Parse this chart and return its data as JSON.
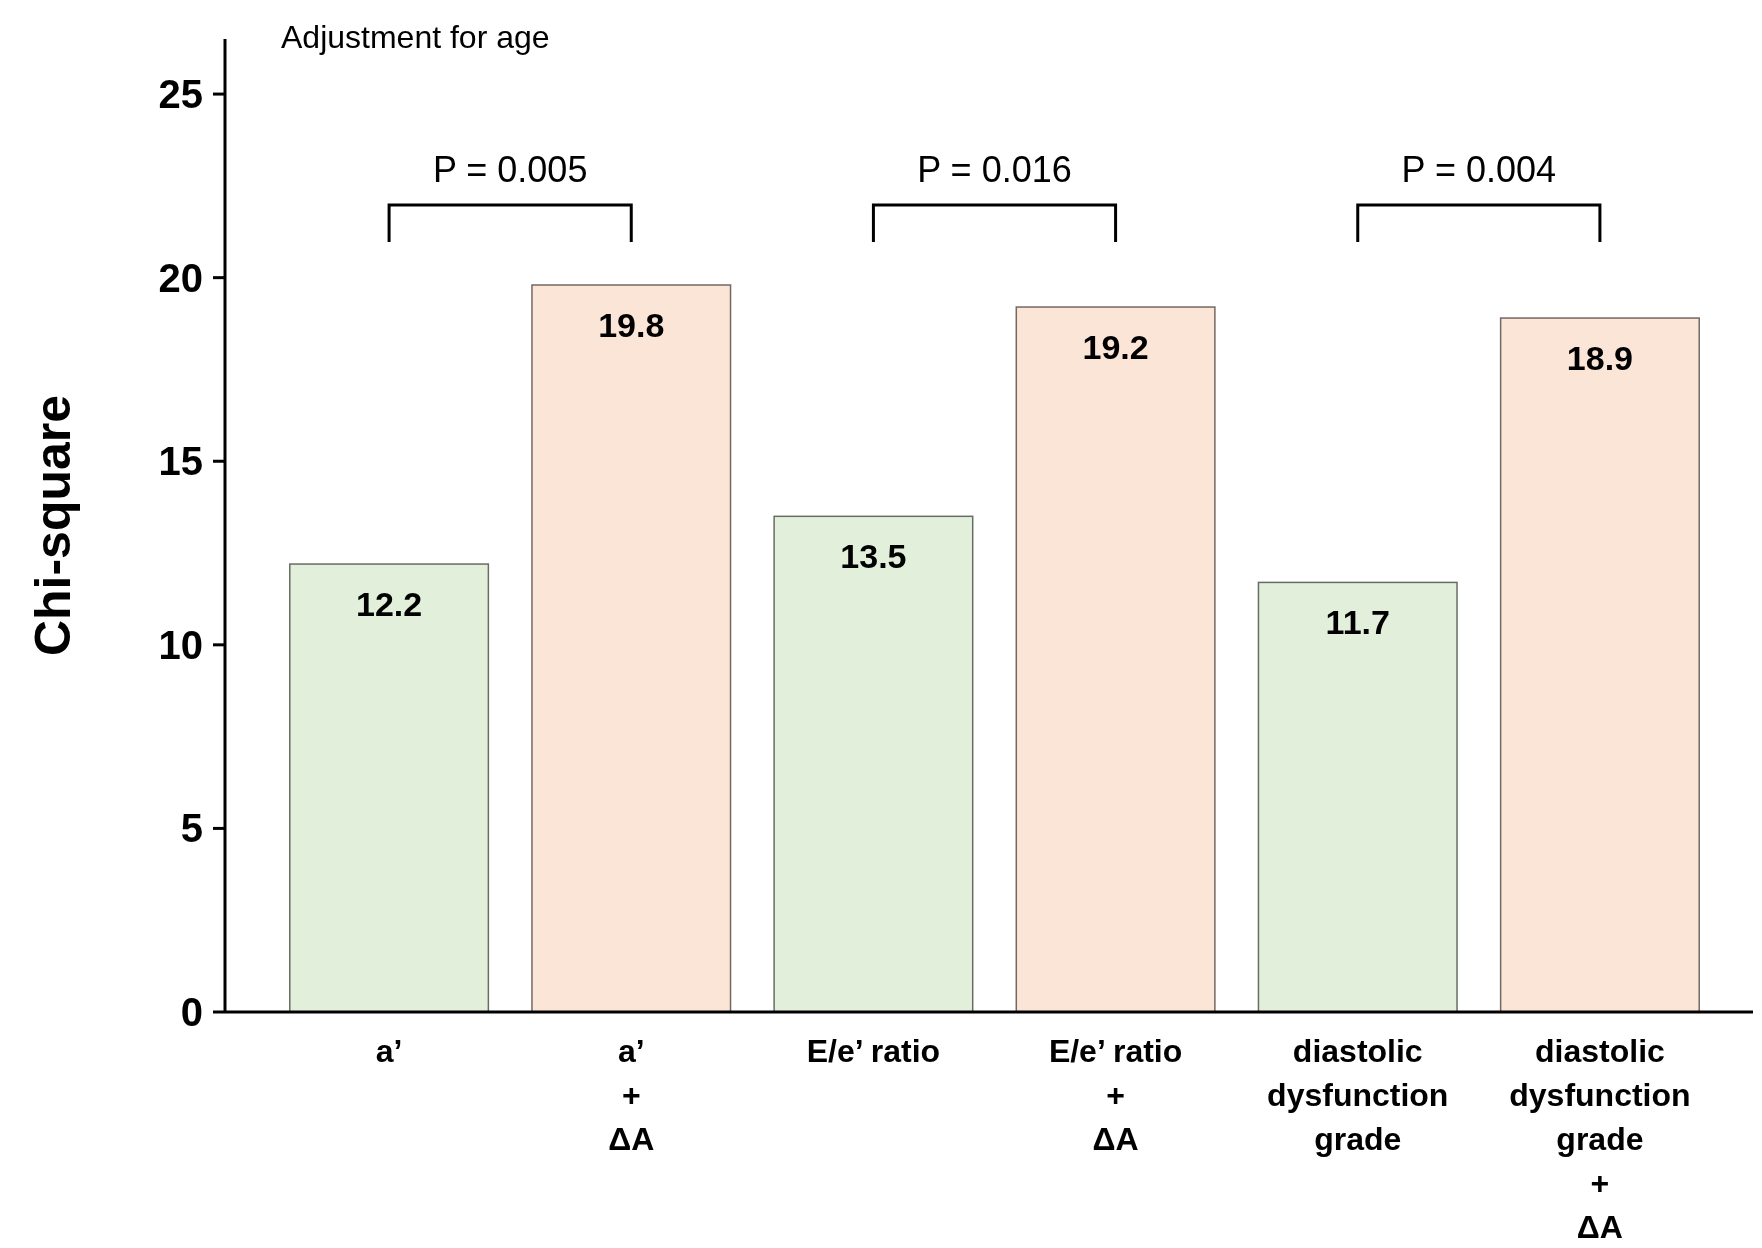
{
  "chart_data": {
    "type": "bar",
    "ylabel": "Chi-square",
    "categories": [
      "a’",
      "a’\n+\nΔA",
      "E/e’ ratio",
      "E/e’ ratio\n+\nΔA",
      "diastolic\ndysfunction\ngrade",
      "diastolic\ndysfunction\ngrade\n+\nΔA"
    ],
    "values": [
      12.2,
      19.8,
      13.5,
      19.2,
      11.7,
      18.9
    ],
    "colors": [
      "#e2efda",
      "#fbe5d6",
      "#e2efda",
      "#fbe5d6",
      "#e2efda",
      "#fbe5d6"
    ],
    "ylim": [
      0,
      26.5
    ],
    "yticks": [
      0,
      5,
      10,
      15,
      20,
      25
    ],
    "data_labels": true,
    "annotations": [
      "Adjustment  for age",
      "P = 0.005",
      "P = 0.016",
      "P = 0.004"
    ]
  }
}
